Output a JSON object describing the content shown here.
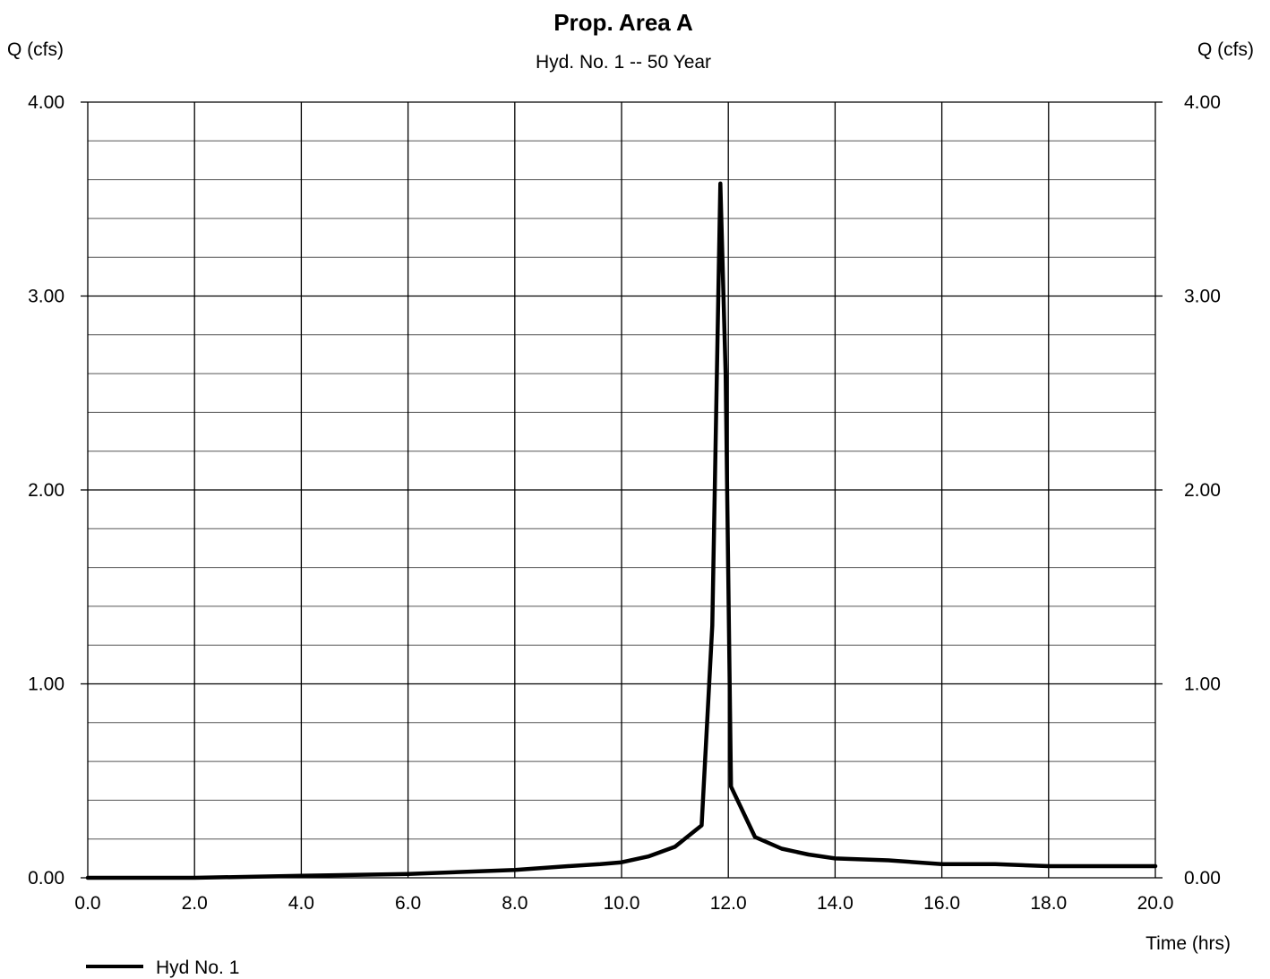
{
  "chart_data": {
    "type": "line",
    "title": "Prop. Area A",
    "subtitle": "Hyd. No. 1 -- 50 Year",
    "ylabel_left": "Q (cfs)",
    "ylabel_right": "Q (cfs)",
    "xlabel": "Time (hrs)",
    "xlim": [
      0,
      20
    ],
    "ylim": [
      0,
      4
    ],
    "x_ticks": [
      "0.0",
      "2.0",
      "4.0",
      "6.0",
      "8.0",
      "10.0",
      "12.0",
      "14.0",
      "16.0",
      "18.0",
      "20.0"
    ],
    "y_ticks": [
      "0.00",
      "1.00",
      "2.00",
      "3.00",
      "4.00"
    ],
    "grid": true,
    "legend_position": "bottom-left",
    "series": [
      {
        "name": "Hyd No. 1",
        "color": "#000000",
        "x": [
          0.0,
          2.0,
          4.0,
          6.0,
          8.0,
          9.0,
          9.6,
          10.0,
          10.5,
          11.0,
          11.5,
          11.7,
          11.85,
          11.95,
          12.05,
          12.5,
          13.0,
          13.5,
          14.0,
          15.0,
          16.0,
          17.0,
          18.0,
          19.0,
          20.0
        ],
        "y": [
          0.0,
          0.0,
          0.01,
          0.02,
          0.04,
          0.06,
          0.07,
          0.08,
          0.11,
          0.16,
          0.27,
          1.3,
          3.58,
          2.6,
          0.47,
          0.21,
          0.15,
          0.12,
          0.1,
          0.09,
          0.07,
          0.07,
          0.06,
          0.06,
          0.06
        ]
      }
    ]
  }
}
